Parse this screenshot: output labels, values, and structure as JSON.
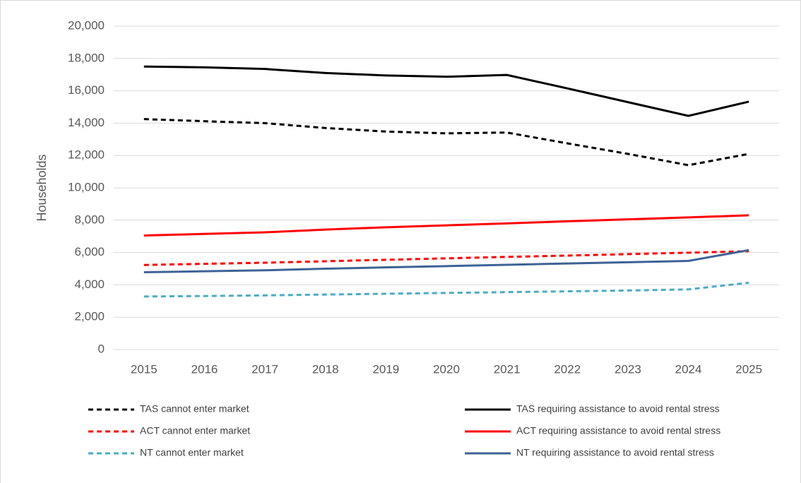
{
  "chart_data": {
    "type": "line",
    "y_label": "Households",
    "categories": [
      "2015",
      "2016",
      "2017",
      "2018",
      "2019",
      "2020",
      "2021",
      "2022",
      "2023",
      "2024",
      "2025"
    ],
    "series": [
      {
        "name": "TAS  cannot enter market",
        "color": "#000000",
        "dash": true,
        "values": [
          14250,
          14120,
          14000,
          13700,
          13480,
          13370,
          13420,
          12750,
          12100,
          11400,
          12100
        ]
      },
      {
        "name": "TAS  requiring assistance to avoid rental stress",
        "color": "#000000",
        "dash": false,
        "values": [
          17500,
          17450,
          17350,
          17100,
          16950,
          16870,
          16980,
          16150,
          15300,
          14450,
          15330
        ]
      },
      {
        "name": "ACT  cannot enter market",
        "color": "#ff0000",
        "dash": true,
        "values": [
          5230,
          5300,
          5370,
          5460,
          5550,
          5640,
          5730,
          5810,
          5900,
          5990,
          6080
        ]
      },
      {
        "name": "ACT  requiring assistance to avoid rental stress",
        "color": "#ff0000",
        "dash": false,
        "values": [
          7050,
          7150,
          7250,
          7420,
          7560,
          7680,
          7800,
          7930,
          8050,
          8170,
          8300
        ]
      },
      {
        "name": "NT  cannot enter market",
        "color": "#4bacc6",
        "dash": true,
        "values": [
          3280,
          3310,
          3350,
          3400,
          3450,
          3500,
          3550,
          3600,
          3650,
          3720,
          4130
        ]
      },
      {
        "name": "NT requiring assistance to avoid rental stress",
        "color": "#3e6296",
        "dash": false,
        "values": [
          4780,
          4840,
          4900,
          5000,
          5080,
          5160,
          5240,
          5320,
          5400,
          5480,
          6150
        ]
      }
    ],
    "ylim": [
      0,
      20000
    ],
    "yticks": [
      0,
      {
        "value": 2000,
        "label": "2,000"
      },
      {
        "value": 4000,
        "label": "4,000"
      },
      {
        "value": 6000,
        "label": "6,000"
      },
      {
        "value": 8000,
        "label": "8,000"
      },
      {
        "value": 10000,
        "label": "10,000"
      },
      {
        "value": 12000,
        "label": "12,000"
      },
      {
        "value": 14000,
        "label": "14,000"
      },
      {
        "value": 16000,
        "label": "16,000"
      },
      {
        "value": 18000,
        "label": "18,000"
      },
      {
        "value": 20000,
        "label": "20,000"
      }
    ],
    "grid": true,
    "legend": "bottom"
  }
}
